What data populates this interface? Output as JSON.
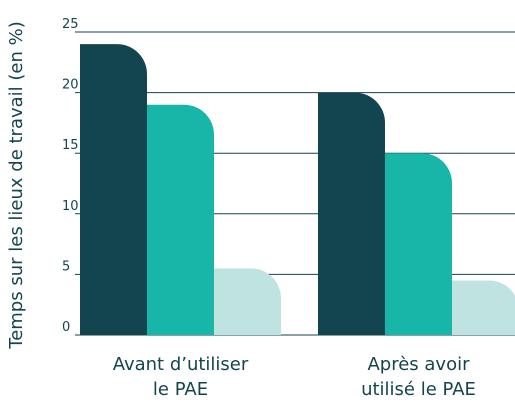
{
  "chart_data": {
    "type": "bar",
    "ylabel": "Temps sur les lieux de travail (en %)",
    "categories": [
      "Avant d’utiliser le PAE",
      "Après avoir utilisé le PAE"
    ],
    "series": [
      {
        "color": "#134550",
        "values": [
          24,
          20
        ]
      },
      {
        "color": "#17b6a8",
        "values": [
          19,
          15
        ]
      },
      {
        "color": "#bfe3e1",
        "values": [
          5.5,
          4.5
        ]
      }
    ],
    "ylim": [
      0,
      25
    ],
    "yticks": [
      0,
      5,
      10,
      15,
      20,
      25
    ],
    "grid": true
  }
}
